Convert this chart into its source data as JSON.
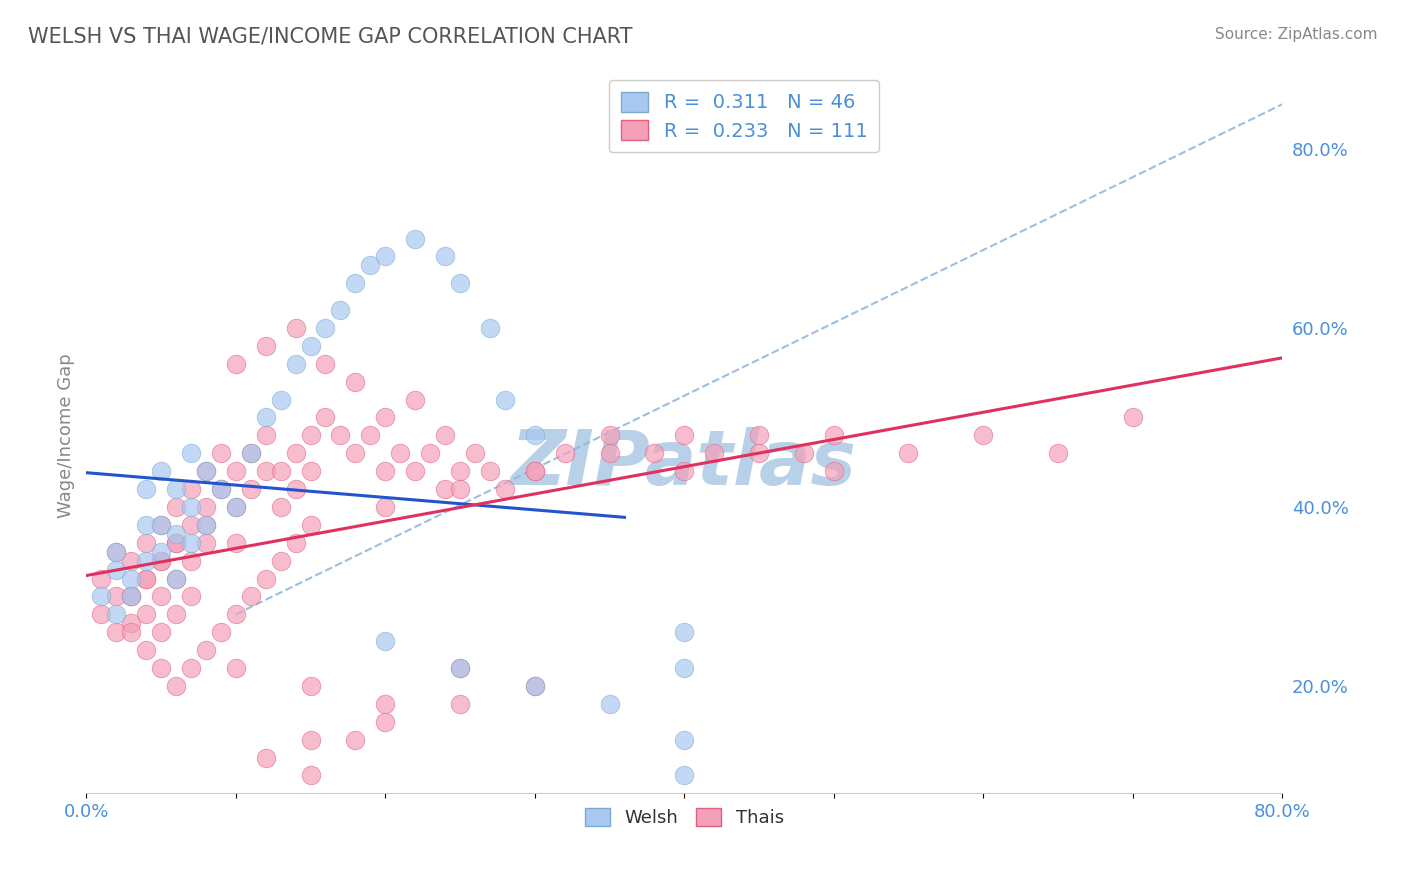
{
  "title": "WELSH VS THAI WAGE/INCOME GAP CORRELATION CHART",
  "source_text": "Source: ZipAtlas.com",
  "ylabel": "Wage/Income Gap",
  "xlim": [
    0.0,
    0.8
  ],
  "ylim": [
    0.08,
    0.88
  ],
  "xtick_positions": [
    0.0,
    0.1,
    0.2,
    0.3,
    0.4,
    0.5,
    0.6,
    0.7,
    0.8
  ],
  "xtick_labels": [
    "0.0%",
    "",
    "",
    "",
    "",
    "",
    "",
    "",
    "80.0%"
  ],
  "yticks_right": [
    0.2,
    0.4,
    0.6,
    0.8
  ],
  "ytick_labels_right": [
    "20.0%",
    "40.0%",
    "60.0%",
    "80.0%"
  ],
  "welsh_color": "#a8c8f0",
  "welsh_edge_color": "#7aaad0",
  "thai_color": "#f4a0b8",
  "thai_edge_color": "#e06080",
  "trend_welsh_color": "#2255cc",
  "trend_thai_color": "#e03060",
  "ref_line_color": "#90b8e0",
  "welsh_R": 0.311,
  "welsh_N": 46,
  "thai_R": 0.233,
  "thai_N": 111,
  "watermark": "ZIPatlas",
  "watermark_color": "#b8d0e8",
  "background_color": "#ffffff",
  "grid_color": "#d8e4f0",
  "title_color": "#555555",
  "axis_label_color": "#4a90d9",
  "welsh_x": [
    0.01,
    0.02,
    0.02,
    0.02,
    0.03,
    0.03,
    0.04,
    0.04,
    0.04,
    0.05,
    0.05,
    0.05,
    0.06,
    0.06,
    0.06,
    0.07,
    0.07,
    0.07,
    0.08,
    0.08,
    0.09,
    0.1,
    0.11,
    0.12,
    0.13,
    0.14,
    0.15,
    0.16,
    0.17,
    0.18,
    0.19,
    0.2,
    0.22,
    0.24,
    0.25,
    0.27,
    0.28,
    0.3,
    0.2,
    0.25,
    0.3,
    0.35,
    0.4,
    0.4,
    0.4,
    0.4
  ],
  "welsh_y": [
    0.3,
    0.33,
    0.28,
    0.35,
    0.32,
    0.3,
    0.34,
    0.38,
    0.42,
    0.35,
    0.38,
    0.44,
    0.32,
    0.37,
    0.42,
    0.36,
    0.4,
    0.46,
    0.38,
    0.44,
    0.42,
    0.4,
    0.46,
    0.5,
    0.52,
    0.56,
    0.58,
    0.6,
    0.62,
    0.65,
    0.67,
    0.68,
    0.7,
    0.68,
    0.65,
    0.6,
    0.52,
    0.48,
    0.25,
    0.22,
    0.2,
    0.18,
    0.26,
    0.22,
    0.14,
    0.1
  ],
  "thai_x": [
    0.01,
    0.01,
    0.02,
    0.02,
    0.02,
    0.03,
    0.03,
    0.03,
    0.04,
    0.04,
    0.04,
    0.05,
    0.05,
    0.05,
    0.05,
    0.06,
    0.06,
    0.06,
    0.06,
    0.07,
    0.07,
    0.07,
    0.07,
    0.08,
    0.08,
    0.08,
    0.09,
    0.09,
    0.1,
    0.1,
    0.1,
    0.11,
    0.11,
    0.12,
    0.12,
    0.13,
    0.13,
    0.14,
    0.14,
    0.15,
    0.15,
    0.16,
    0.17,
    0.18,
    0.19,
    0.2,
    0.21,
    0.22,
    0.23,
    0.24,
    0.25,
    0.26,
    0.27,
    0.28,
    0.3,
    0.32,
    0.35,
    0.38,
    0.4,
    0.42,
    0.45,
    0.48,
    0.5,
    0.55,
    0.6,
    0.65,
    0.7,
    0.1,
    0.12,
    0.14,
    0.16,
    0.18,
    0.2,
    0.22,
    0.24,
    0.08,
    0.06,
    0.05,
    0.04,
    0.03,
    0.03,
    0.04,
    0.05,
    0.06,
    0.07,
    0.08,
    0.09,
    0.1,
    0.11,
    0.12,
    0.13,
    0.14,
    0.15,
    0.2,
    0.25,
    0.3,
    0.35,
    0.4,
    0.45,
    0.5,
    0.1,
    0.15,
    0.2,
    0.25,
    0.3,
    0.15,
    0.2,
    0.25,
    0.12,
    0.15,
    0.18
  ],
  "thai_y": [
    0.32,
    0.28,
    0.35,
    0.3,
    0.26,
    0.34,
    0.3,
    0.27,
    0.36,
    0.32,
    0.28,
    0.38,
    0.34,
    0.3,
    0.26,
    0.4,
    0.36,
    0.32,
    0.28,
    0.42,
    0.38,
    0.34,
    0.3,
    0.44,
    0.4,
    0.36,
    0.46,
    0.42,
    0.44,
    0.4,
    0.36,
    0.46,
    0.42,
    0.48,
    0.44,
    0.44,
    0.4,
    0.46,
    0.42,
    0.48,
    0.44,
    0.5,
    0.48,
    0.46,
    0.48,
    0.44,
    0.46,
    0.44,
    0.46,
    0.42,
    0.44,
    0.46,
    0.44,
    0.42,
    0.44,
    0.46,
    0.48,
    0.46,
    0.44,
    0.46,
    0.48,
    0.46,
    0.48,
    0.46,
    0.48,
    0.46,
    0.5,
    0.56,
    0.58,
    0.6,
    0.56,
    0.54,
    0.5,
    0.52,
    0.48,
    0.38,
    0.36,
    0.34,
    0.32,
    0.3,
    0.26,
    0.24,
    0.22,
    0.2,
    0.22,
    0.24,
    0.26,
    0.28,
    0.3,
    0.32,
    0.34,
    0.36,
    0.38,
    0.4,
    0.42,
    0.44,
    0.46,
    0.48,
    0.46,
    0.44,
    0.22,
    0.2,
    0.18,
    0.22,
    0.2,
    0.14,
    0.16,
    0.18,
    0.12,
    0.1,
    0.14
  ]
}
